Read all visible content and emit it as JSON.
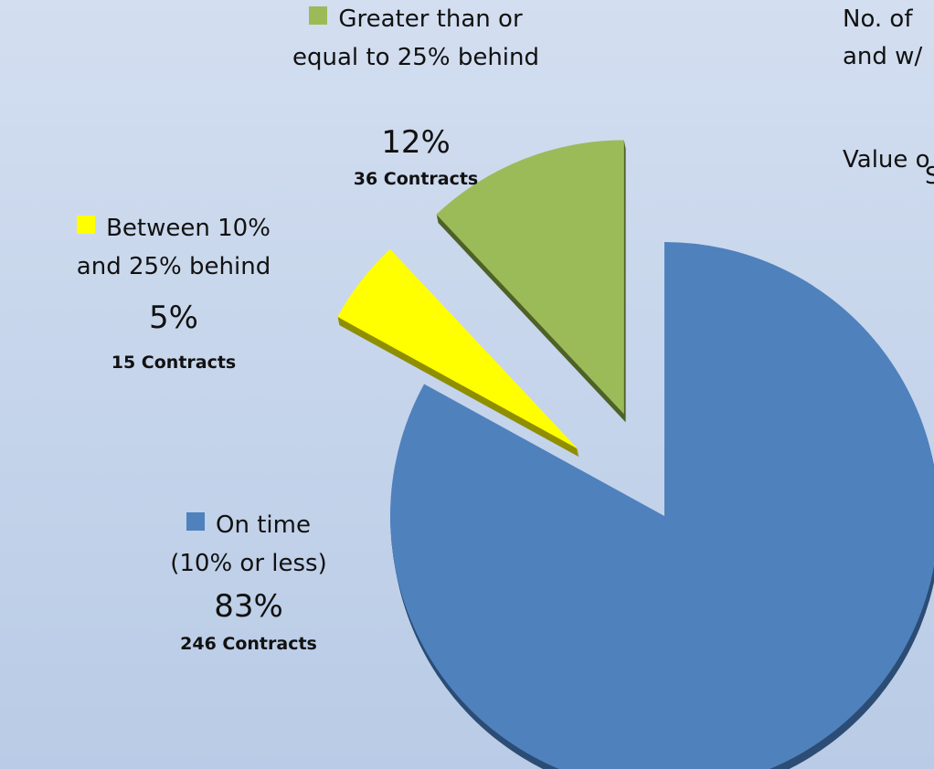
{
  "chart_data": {
    "type": "pie",
    "categories": [
      "On time (10% or less)",
      "Between 10% and 25% behind",
      "Greater than or equal to 25% behind"
    ],
    "values": [
      83,
      5,
      12
    ],
    "value_labels": [
      "83%",
      "5%",
      "12%"
    ],
    "count_labels": [
      "246 Contracts",
      "15 Contracts",
      "36 Contracts"
    ],
    "colors": [
      "#4f81bd",
      "#ffff00",
      "#9bbb59"
    ],
    "edge_colors": [
      "#2c4d75",
      "#8f8f00",
      "#4f6228"
    ],
    "annotations": [
      "No. of",
      "and w/",
      "Value o",
      "S"
    ]
  }
}
